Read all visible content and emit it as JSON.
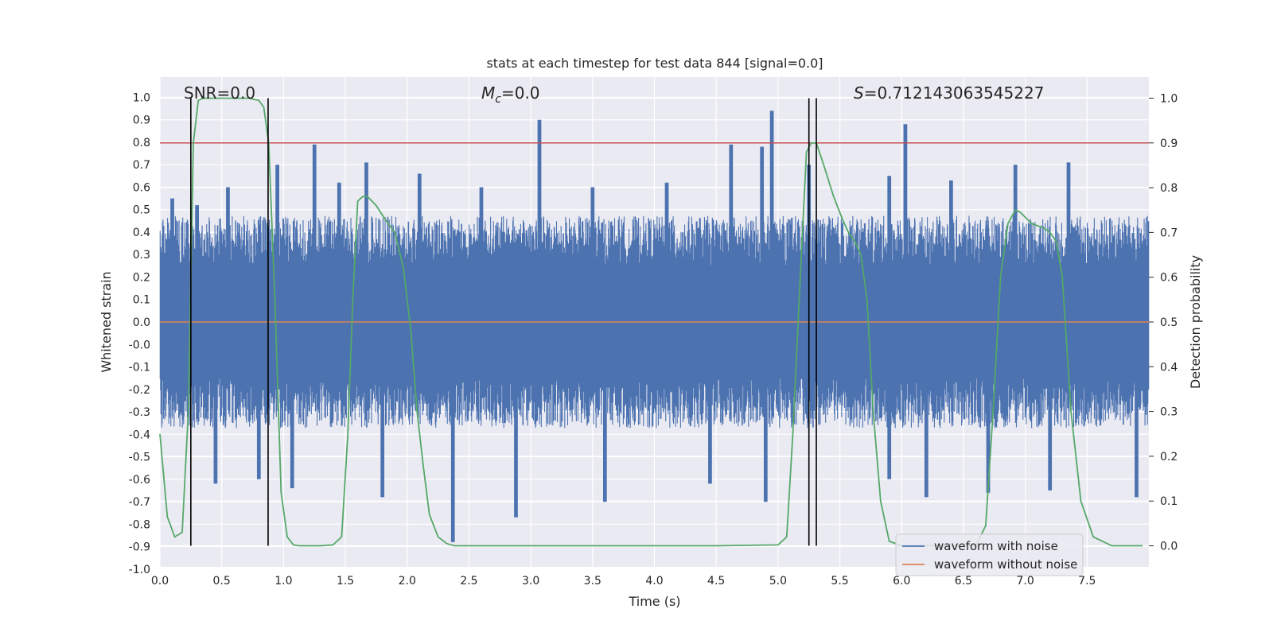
{
  "chart_data": {
    "type": "line",
    "title": "stats at each timestep for test data 844 [signal=0.0]",
    "xlabel": "Time (s)",
    "ylabel": "Whitened strain",
    "y2label": "Detection probability",
    "xlim": [
      0.0,
      8.0
    ],
    "ylim": [
      -1.09,
      1.09
    ],
    "y2lim": [
      -0.047,
      1.047
    ],
    "xticks": [
      "0.0",
      "0.5",
      "1.0",
      "1.5",
      "2.0",
      "2.5",
      "3.0",
      "3.5",
      "4.0",
      "4.5",
      "5.0",
      "5.5",
      "6.0",
      "6.5",
      "7.0",
      "7.5"
    ],
    "yticks": [
      "1.0",
      "0.9",
      "0.8",
      "0.7",
      "0.6",
      "0.5",
      "0.4",
      "0.3",
      "0.2",
      "0.1",
      "0.0",
      "-0.0",
      "-0.1",
      "-0.2",
      "-0.3",
      "-0.4",
      "-0.5",
      "-0.6",
      "-0.7",
      "-0.8",
      "-0.9",
      "-1.0"
    ],
    "y2ticks": [
      "0.0",
      "0.1",
      "0.2",
      "0.3",
      "0.4",
      "0.5",
      "0.6",
      "0.7",
      "0.8",
      "0.9",
      "1.0"
    ],
    "annotations": {
      "snr": "SNR=0.0",
      "mc_symbol": "M",
      "mc_sub": "c",
      "mc_value": "=0.0",
      "s_symbol": "S",
      "s_value": "=0.712143063545227"
    },
    "threshold_y2": 0.9,
    "vertical_markers_x": [
      0.25,
      0.875,
      5.25,
      5.31
    ],
    "noise_envelope": {
      "typical_upper": 0.45,
      "typical_lower": -0.45,
      "upper_spikes": [
        [
          0.1,
          0.55
        ],
        [
          0.3,
          0.52
        ],
        [
          0.55,
          0.6
        ],
        [
          0.95,
          0.7
        ],
        [
          1.25,
          0.79
        ],
        [
          1.45,
          0.62
        ],
        [
          1.67,
          0.71
        ],
        [
          2.1,
          0.66
        ],
        [
          2.6,
          0.6
        ],
        [
          3.07,
          0.9
        ],
        [
          3.5,
          0.6
        ],
        [
          4.1,
          0.62
        ],
        [
          4.62,
          0.79
        ],
        [
          4.87,
          0.78
        ],
        [
          4.95,
          0.94
        ],
        [
          5.25,
          0.7
        ],
        [
          5.9,
          0.65
        ],
        [
          6.03,
          0.88
        ],
        [
          6.4,
          0.63
        ],
        [
          6.92,
          0.7
        ],
        [
          7.35,
          0.71
        ]
      ],
      "lower_spikes": [
        [
          0.45,
          -0.72
        ],
        [
          0.8,
          -0.7
        ],
        [
          1.07,
          -0.74
        ],
        [
          1.8,
          -0.78
        ],
        [
          2.37,
          -0.98
        ],
        [
          2.88,
          -0.87
        ],
        [
          3.6,
          -0.8
        ],
        [
          4.45,
          -0.72
        ],
        [
          4.9,
          -0.8
        ],
        [
          5.9,
          -0.7
        ],
        [
          6.2,
          -0.78
        ],
        [
          6.7,
          -0.76
        ],
        [
          7.2,
          -0.75
        ],
        [
          7.9,
          -0.78
        ]
      ]
    },
    "series": [
      {
        "name": "waveform with noise",
        "color": "#4c72b0",
        "axis": "left"
      },
      {
        "name": "waveform without noise",
        "color": "#dd8452",
        "axis": "left",
        "x": [
          0.0,
          8.0
        ],
        "y": [
          0.0,
          0.0
        ]
      },
      {
        "name": "detection probability",
        "color": "#55a868",
        "axis": "right",
        "x": [
          0.0,
          0.06,
          0.12,
          0.18,
          0.23,
          0.27,
          0.31,
          0.35,
          0.45,
          0.55,
          0.65,
          0.72,
          0.8,
          0.84,
          0.88,
          0.93,
          0.98,
          1.03,
          1.08,
          1.13,
          1.2,
          1.3,
          1.4,
          1.47,
          1.52,
          1.56,
          1.6,
          1.64,
          1.68,
          1.75,
          1.82,
          1.9,
          1.97,
          2.03,
          2.08,
          2.13,
          2.18,
          2.25,
          2.32,
          2.38,
          2.5,
          3.0,
          3.5,
          4.0,
          4.5,
          5.0,
          5.07,
          5.12,
          5.18,
          5.23,
          5.27,
          5.31,
          5.37,
          5.45,
          5.52,
          5.57,
          5.62,
          5.67,
          5.72,
          5.77,
          5.83,
          5.9,
          6.0,
          6.3,
          6.6,
          6.68,
          6.74,
          6.8,
          6.86,
          6.92,
          6.96,
          7.05,
          7.15,
          7.2,
          7.25,
          7.3,
          7.37,
          7.45,
          7.55,
          7.7,
          7.95
        ],
        "y": [
          0.25,
          0.065,
          0.02,
          0.03,
          0.3,
          0.9,
          0.995,
          1.0,
          1.0,
          1.0,
          1.0,
          1.0,
          0.995,
          0.98,
          0.9,
          0.55,
          0.12,
          0.02,
          0.002,
          0.0,
          0.0,
          0.0,
          0.002,
          0.02,
          0.25,
          0.55,
          0.77,
          0.78,
          0.78,
          0.76,
          0.73,
          0.7,
          0.62,
          0.48,
          0.3,
          0.18,
          0.07,
          0.02,
          0.005,
          0.0,
          0.0,
          0.0,
          0.0,
          0.0,
          0.0,
          0.002,
          0.02,
          0.25,
          0.6,
          0.88,
          0.9,
          0.9,
          0.85,
          0.78,
          0.73,
          0.7,
          0.68,
          0.65,
          0.55,
          0.3,
          0.1,
          0.01,
          0.0,
          0.0,
          0.0,
          0.045,
          0.3,
          0.6,
          0.72,
          0.75,
          0.745,
          0.72,
          0.71,
          0.7,
          0.68,
          0.6,
          0.3,
          0.1,
          0.02,
          0.0,
          0.0
        ]
      }
    ],
    "legend": {
      "location": "lower-right",
      "entries": [
        "waveform with noise",
        "waveform without noise"
      ]
    },
    "colors": {
      "background": "#eaeaf2",
      "grid": "#ffffff",
      "threshold": "#c44e52",
      "marker": "#000000"
    }
  }
}
